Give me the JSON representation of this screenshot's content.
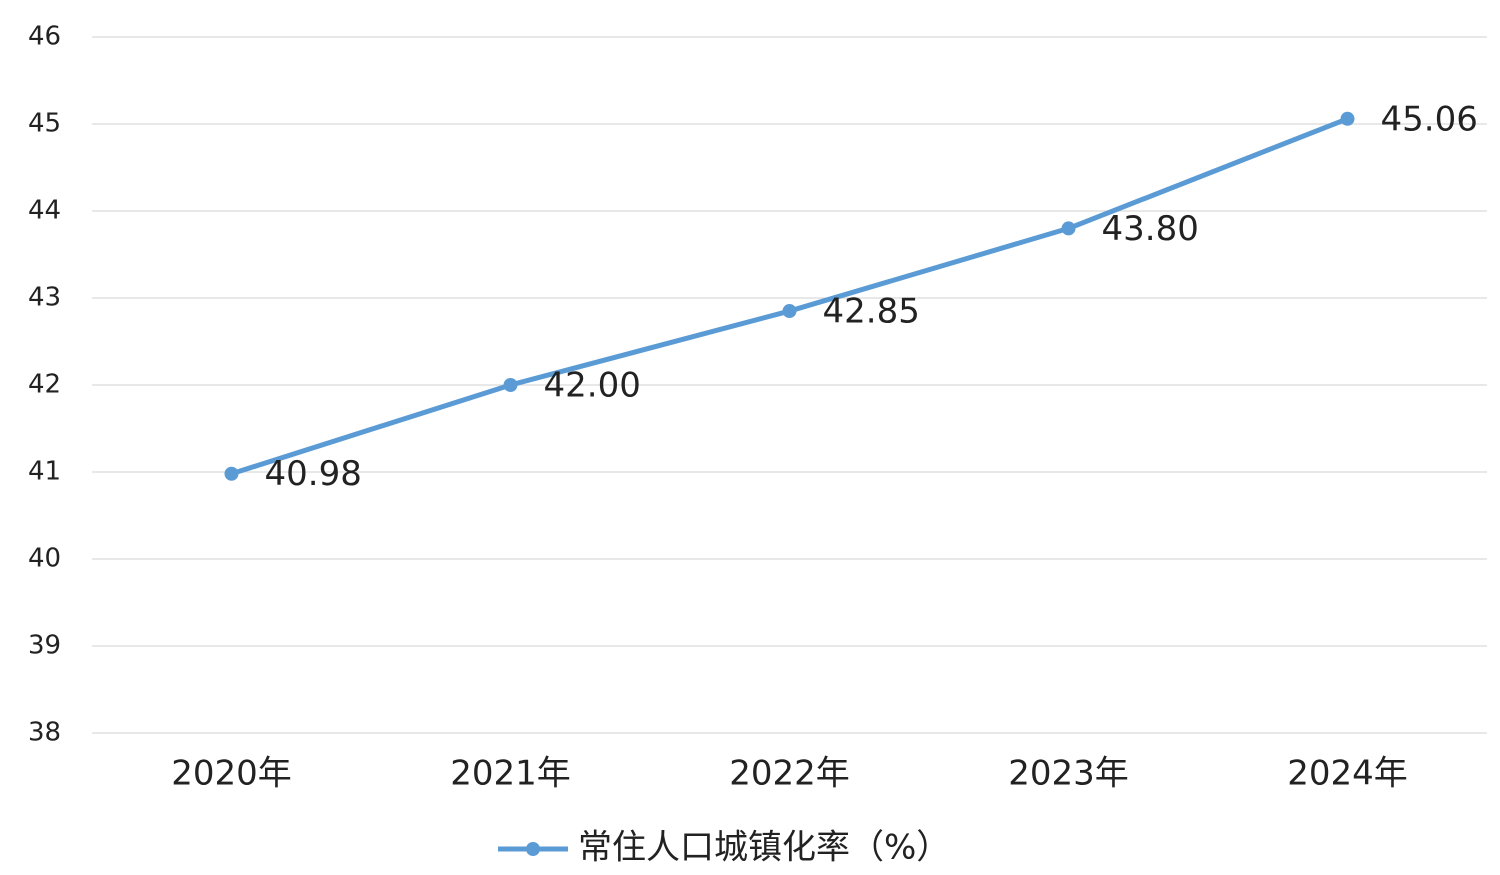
{
  "chart_data": {
    "type": "line",
    "categories": [
      "2020年",
      "2021年",
      "2022年",
      "2023年",
      "2024年"
    ],
    "series": [
      {
        "name": "常住人口城镇化率（%）",
        "color": "#5b9bd5",
        "values": [
          40.98,
          42.0,
          42.85,
          43.8,
          45.06
        ],
        "value_labels": [
          "40.98",
          "42.00",
          "42.85",
          "43.80",
          "45.06"
        ]
      }
    ],
    "ylim": [
      38,
      46
    ],
    "yticks": [
      38,
      39,
      40,
      41,
      42,
      43,
      44,
      45,
      46
    ],
    "grid": true,
    "legend": "bottom"
  }
}
